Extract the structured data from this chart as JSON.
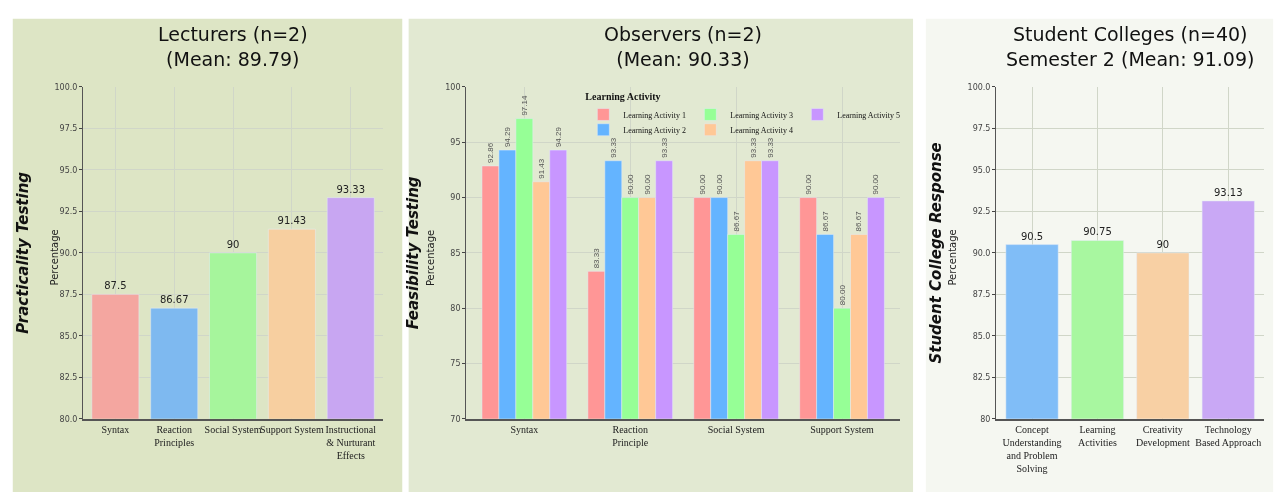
{
  "chart_data": [
    {
      "type": "bar",
      "title": "Lecturers (n=2)\n(Mean: 89.79)",
      "ylabel": "Practicality Testing",
      "annotations": [
        "Percentage"
      ],
      "categories": [
        "Syntax",
        "Reaction Principles",
        "Social System",
        "Support System",
        "Instructional & Nurturant Effects"
      ],
      "values": [
        87.5,
        86.67,
        90,
        91.43,
        93.33
      ],
      "colors": [
        "#f4a6a0",
        "#7eb9f0",
        "#a6f59c",
        "#f7cfa0",
        "#c8a6f2"
      ],
      "ylim": [
        80,
        100
      ],
      "yticks": [
        {
          "value": 80,
          "label": "80.0"
        },
        {
          "value": 82.5,
          "label": "82.5"
        },
        {
          "value": 85,
          "label": "85.0"
        },
        {
          "value": 87.5,
          "label": "87.5"
        },
        {
          "value": 90,
          "label": "90.0"
        },
        {
          "value": 92.5,
          "label": "92.5"
        },
        {
          "value": 95,
          "label": "95.0"
        },
        {
          "value": 97.5,
          "label": "97.5"
        },
        {
          "value": 100,
          "label": "100.0"
        }
      ],
      "grid": true,
      "data_labels": true
    },
    {
      "type": "bar",
      "title": "Observers (n=2)\n(Mean: 90.33)",
      "ylabel": "Feasibility Testing",
      "annotations": [
        "Percentage"
      ],
      "categories": [
        "Syntax",
        "Reaction Principle",
        "Social System",
        "Support System"
      ],
      "legend_title": "Learning Activity",
      "legend": "top",
      "series": [
        {
          "name": "Learning Activity 1",
          "color": "#ff9696",
          "values": [
            92.86,
            83.33,
            90.0,
            90.0
          ],
          "value_labels": [
            "92.86",
            "83.33",
            "90.00",
            "90.00"
          ]
        },
        {
          "name": "Learning Activity 2",
          "color": "#64b4ff",
          "values": [
            94.29,
            93.33,
            90.0,
            86.67
          ],
          "value_labels": [
            "94.29",
            "93.33",
            "90.00",
            "86.67"
          ]
        },
        {
          "name": "Learning Activity 3",
          "color": "#96ff96",
          "values": [
            97.14,
            90.0,
            86.67,
            80.0
          ],
          "value_labels": [
            "97.14",
            "90.00",
            "86.67",
            "80.00"
          ]
        },
        {
          "name": "Learning Activity 4",
          "color": "#ffc896",
          "values": [
            91.43,
            90.0,
            93.33,
            86.67
          ],
          "value_labels": [
            "91.43",
            "90.00",
            "93.33",
            "86.67"
          ]
        },
        {
          "name": "Learning Activity 5",
          "color": "#c896ff",
          "values": [
            94.29,
            93.33,
            93.33,
            90.0
          ],
          "value_labels": [
            "94.29",
            "93.33",
            "93.33",
            "90.00"
          ]
        }
      ],
      "ylim": [
        70,
        100
      ],
      "yticks": [
        70,
        75,
        80,
        85,
        90,
        95,
        100
      ],
      "grid": true
    },
    {
      "type": "bar",
      "title": "Student Colleges (n=40)\nSemester 2 (Mean: 91.09)",
      "ylabel": "Student College Response",
      "annotations": [
        "Percentage"
      ],
      "categories": [
        "Concept Understanding and Problem Solving",
        "Learning Activities",
        "Creativity Development",
        "Technology Based Approach"
      ],
      "values": [
        90.5,
        90.75,
        90,
        93.13
      ],
      "colors": [
        "#80bdf7",
        "#a8f7a0",
        "#f8d0a4",
        "#c9a8f5"
      ],
      "ylim": [
        80,
        100
      ],
      "yticks": [
        80,
        {
          "value": 82.5,
          "label": "82.5"
        },
        {
          "value": 85,
          "label": "85.0"
        },
        {
          "value": 87.5,
          "label": "87.5"
        },
        {
          "value": 90,
          "label": "90.0"
        },
        {
          "value": 92.5,
          "label": "92.5"
        },
        {
          "value": 95,
          "label": "95.0"
        },
        {
          "value": 97.5,
          "label": "97.5"
        },
        {
          "value": 100,
          "label": "100.0"
        }
      ],
      "grid": true,
      "data_labels": true
    }
  ]
}
